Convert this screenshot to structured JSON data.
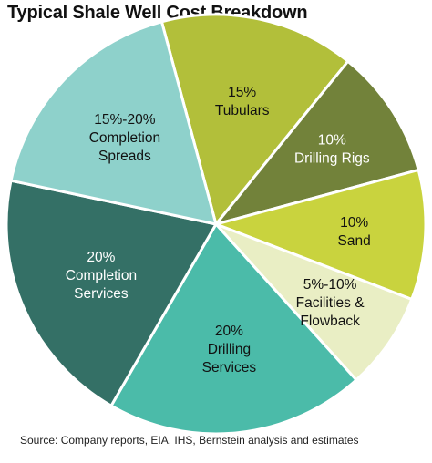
{
  "chart_data": {
    "type": "pie",
    "title": "Typical Shale Well Cost Breakdown",
    "source": "Source: Company reports, EIA, IHS, Bernstein analysis and estimates",
    "slices": [
      {
        "label_lines": [
          "15%",
          "Tubulars"
        ],
        "value": 15,
        "color": "#b2bf3a",
        "text": "dark"
      },
      {
        "label_lines": [
          "10%",
          "Drilling Rigs"
        ],
        "value": 10,
        "color": "#72823a",
        "text": "light"
      },
      {
        "label_lines": [
          "10%",
          "Sand"
        ],
        "value": 10,
        "color": "#c9d33e",
        "text": "dark"
      },
      {
        "label_lines": [
          "5%-10%",
          "Facilities &",
          "Flowback"
        ],
        "value": 7.5,
        "color": "#e9eec4",
        "text": "dark"
      },
      {
        "label_lines": [
          "20%",
          "Drilling",
          "Services"
        ],
        "value": 20,
        "color": "#4bbba9",
        "text": "dark"
      },
      {
        "label_lines": [
          "20%",
          "Completion",
          "Services"
        ],
        "value": 20,
        "color": "#347066",
        "text": "light"
      },
      {
        "label_lines": [
          "15%-20%",
          "Completion",
          "Spreads"
        ],
        "value": 17.5,
        "color": "#8ed1cb",
        "text": "dark"
      }
    ]
  }
}
